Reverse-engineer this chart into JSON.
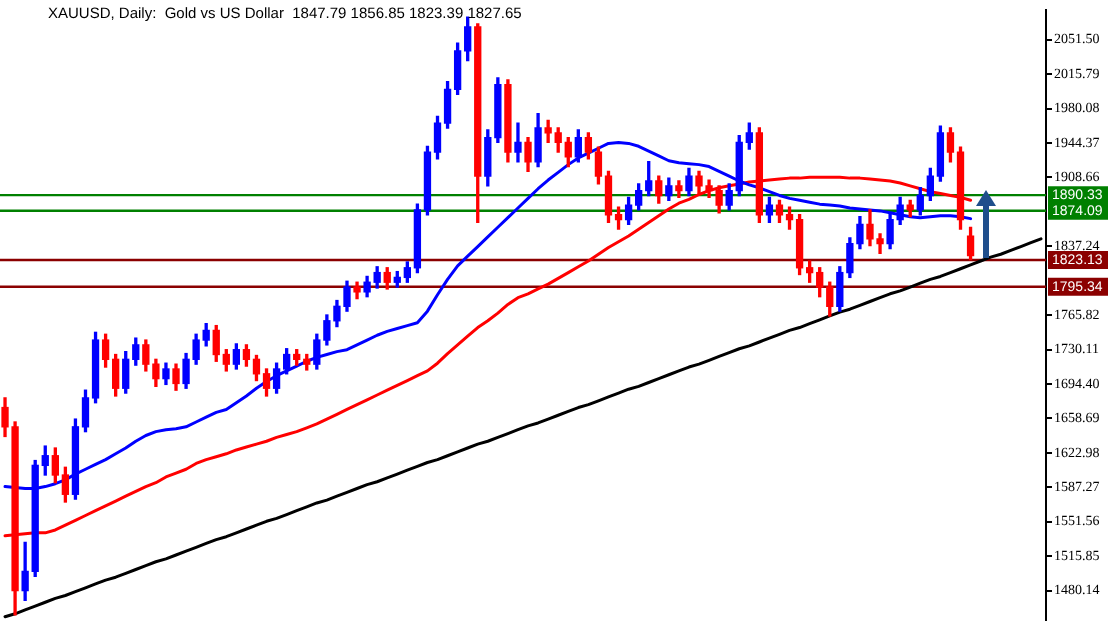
{
  "chart_data": {
    "type": "candlestick",
    "title": "XAUUSD, Daily:  Gold vs US Dollar  1847.79 1856.85 1823.39 1827.65",
    "categories": [
      null,
      null,
      null,
      null,
      null,
      null,
      null,
      null,
      null,
      null,
      null,
      null,
      null,
      null,
      null,
      null,
      null,
      null,
      null,
      null,
      null,
      null,
      null,
      null,
      null,
      null,
      null,
      null,
      null,
      null,
      null,
      null,
      null,
      null,
      null,
      null,
      null,
      null,
      null,
      null,
      null,
      null,
      null,
      null,
      null,
      null,
      null,
      null,
      null,
      null,
      null,
      null,
      null,
      null,
      null,
      null,
      null,
      null,
      null,
      null,
      null,
      null,
      null,
      null,
      null,
      null,
      null,
      null,
      null,
      null,
      null,
      null,
      null,
      null,
      null,
      null,
      null,
      null,
      null,
      null,
      null,
      null,
      null,
      null,
      null,
      null,
      null,
      null,
      null,
      null,
      null,
      null,
      null,
      null,
      null,
      null,
      null,
      null,
      null,
      null,
      null,
      null,
      null,
      null
    ],
    "series": [
      {
        "type": "line",
        "color": "#0000ff",
        "values": [
          1588,
          1587,
          1586,
          1586,
          1588,
          1591,
          1595,
          1601,
          1606,
          1611,
          1616,
          1622,
          1628,
          1635,
          1641,
          1645,
          1647,
          1648,
          1650,
          1655,
          1660,
          1665,
          1668,
          1675,
          1682,
          1690,
          1697,
          1703,
          1708,
          1713,
          1718,
          1722,
          1725,
          1728,
          1730,
          1735,
          1740,
          1745,
          1749,
          1752,
          1755,
          1758,
          1770,
          1787,
          1803,
          1817,
          1827,
          1837,
          1847,
          1857,
          1867,
          1877,
          1887,
          1897,
          1906,
          1914,
          1922,
          1929,
          1934,
          1939,
          1944,
          1945,
          1944,
          1941,
          1936,
          1931,
          1926,
          1924,
          1923,
          1922,
          1920,
          1915,
          1910,
          1905,
          1901,
          1898,
          1894,
          1890,
          1887,
          1885,
          1883,
          1881,
          1880,
          1879,
          1877,
          1876,
          1875,
          1874,
          1872,
          1870,
          1868,
          1867,
          1868,
          1869,
          1869,
          1868,
          1866,
          null,
          null,
          null,
          null,
          null,
          null,
          null
        ]
      },
      {
        "type": "line",
        "color": "#ff0000",
        "values": [
          1537,
          1538,
          1539,
          1540,
          1540,
          1543,
          1548,
          1553,
          1558,
          1563,
          1568,
          1573,
          1578,
          1583,
          1588,
          1592,
          1598,
          1602,
          1606,
          1612,
          1616,
          1619,
          1622,
          1626,
          1629,
          1632,
          1635,
          1639,
          1642,
          1645,
          1649,
          1653,
          1658,
          1663,
          1668,
          1673,
          1678,
          1683,
          1688,
          1693,
          1698,
          1703,
          1708,
          1716,
          1726,
          1735,
          1744,
          1753,
          1760,
          1768,
          1777,
          1784,
          1788,
          1793,
          1798,
          1804,
          1810,
          1816,
          1822,
          1829,
          1836,
          1842,
          1848,
          1855,
          1862,
          1869,
          1876,
          1882,
          1886,
          1891,
          1895,
          1898,
          1900,
          1902,
          1904,
          1905,
          1906,
          1907,
          1908,
          1908,
          1909,
          1909,
          1909,
          1909,
          1908,
          1908,
          1907,
          1906,
          1905,
          1903,
          1900,
          1897,
          1894,
          1892,
          1890,
          1888,
          1885,
          null,
          null,
          null,
          null,
          null,
          null,
          null
        ]
      },
      {
        "type": "line",
        "color": "#000000",
        "values": [
          1453,
          1456,
          1460,
          1464,
          1468,
          1472,
          1475,
          1479,
          1483,
          1487,
          1491,
          1494,
          1498,
          1502,
          1506,
          1510,
          1513,
          1517,
          1521,
          1525,
          1529,
          1533,
          1536,
          1540,
          1544,
          1548,
          1552,
          1555,
          1559,
          1563,
          1567,
          1571,
          1574,
          1578,
          1582,
          1586,
          1590,
          1593,
          1597,
          1601,
          1605,
          1609,
          1613,
          1616,
          1620,
          1624,
          1628,
          1632,
          1635,
          1639,
          1643,
          1647,
          1651,
          1654,
          1658,
          1662,
          1666,
          1670,
          1673,
          1677,
          1681,
          1685,
          1689,
          1692,
          1696,
          1700,
          1704,
          1708,
          1712,
          1715,
          1719,
          1723,
          1727,
          1731,
          1734,
          1738,
          1742,
          1746,
          1750,
          1753,
          1757,
          1761,
          1765,
          1769,
          1772,
          1776,
          1780,
          1784,
          1788,
          1791,
          1795,
          1799,
          1803,
          1806,
          1810,
          1814,
          1818,
          1822,
          1826,
          1829,
          1833,
          1837,
          1841,
          1845
        ]
      },
      {
        "ohlc": [
          [
            1670,
            1680,
            1640,
            1650
          ],
          [
            1650,
            1655,
            1455,
            1480
          ],
          [
            1480,
            1530,
            1470,
            1500
          ],
          [
            1500,
            1615,
            1495,
            1610
          ],
          [
            1610,
            1630,
            1600,
            1620
          ],
          [
            1620,
            1628,
            1592,
            1600
          ],
          [
            1600,
            1608,
            1572,
            1580
          ],
          [
            1580,
            1658,
            1575,
            1650
          ],
          [
            1650,
            1688,
            1645,
            1680
          ],
          [
            1680,
            1748,
            1675,
            1740
          ],
          [
            1740,
            1746,
            1712,
            1720
          ],
          [
            1720,
            1725,
            1682,
            1690
          ],
          [
            1690,
            1728,
            1685,
            1720
          ],
          [
            1720,
            1742,
            1714,
            1735
          ],
          [
            1735,
            1740,
            1708,
            1715
          ],
          [
            1715,
            1720,
            1692,
            1700
          ],
          [
            1700,
            1716,
            1694,
            1710
          ],
          [
            1710,
            1715,
            1688,
            1695
          ],
          [
            1695,
            1726,
            1690,
            1720
          ],
          [
            1720,
            1746,
            1715,
            1740
          ],
          [
            1740,
            1757,
            1734,
            1750
          ],
          [
            1750,
            1755,
            1718,
            1725
          ],
          [
            1725,
            1730,
            1708,
            1715
          ],
          [
            1715,
            1736,
            1710,
            1730
          ],
          [
            1730,
            1735,
            1713,
            1720
          ],
          [
            1720,
            1724,
            1698,
            1705
          ],
          [
            1705,
            1710,
            1682,
            1690
          ],
          [
            1690,
            1716,
            1685,
            1710
          ],
          [
            1710,
            1731,
            1705,
            1725
          ],
          [
            1725,
            1730,
            1714,
            1720
          ],
          [
            1720,
            1725,
            1709,
            1715
          ],
          [
            1715,
            1746,
            1710,
            1740
          ],
          [
            1740,
            1766,
            1735,
            1760
          ],
          [
            1760,
            1781,
            1754,
            1775
          ],
          [
            1775,
            1801,
            1770,
            1795
          ],
          [
            1795,
            1800,
            1783,
            1790
          ],
          [
            1790,
            1806,
            1785,
            1800
          ],
          [
            1800,
            1816,
            1794,
            1810
          ],
          [
            1810,
            1815,
            1793,
            1800
          ],
          [
            1800,
            1811,
            1795,
            1805
          ],
          [
            1805,
            1821,
            1800,
            1815
          ],
          [
            1815,
            1881,
            1810,
            1875
          ],
          [
            1875,
            1941,
            1870,
            1935
          ],
          [
            1935,
            1972,
            1928,
            1965
          ],
          [
            1965,
            2008,
            1960,
            2000
          ],
          [
            2000,
            2048,
            1995,
            2040
          ],
          [
            2040,
            2075,
            2030,
            2065
          ],
          [
            2065,
            2068,
            1862,
            1910
          ],
          [
            1910,
            1958,
            1900,
            1950
          ],
          [
            1950,
            2012,
            1945,
            2005
          ],
          [
            2005,
            2010,
            1925,
            1935
          ],
          [
            1935,
            1965,
            1925,
            1945
          ],
          [
            1945,
            1950,
            1915,
            1925
          ],
          [
            1925,
            1975,
            1920,
            1960
          ],
          [
            1960,
            1968,
            1945,
            1955
          ],
          [
            1955,
            1960,
            1935,
            1945
          ],
          [
            1945,
            1950,
            1920,
            1930
          ],
          [
            1930,
            1958,
            1925,
            1950
          ],
          [
            1950,
            1955,
            1928,
            1935
          ],
          [
            1935,
            1940,
            1902,
            1910
          ],
          [
            1910,
            1915,
            1862,
            1870
          ],
          [
            1870,
            1878,
            1855,
            1865
          ],
          [
            1865,
            1888,
            1860,
            1880
          ],
          [
            1880,
            1902,
            1875,
            1895
          ],
          [
            1895,
            1925,
            1890,
            1905
          ],
          [
            1905,
            1910,
            1882,
            1890
          ],
          [
            1890,
            1908,
            1885,
            1900
          ],
          [
            1900,
            1905,
            1888,
            1895
          ],
          [
            1895,
            1918,
            1890,
            1910
          ],
          [
            1910,
            1915,
            1892,
            1900
          ],
          [
            1900,
            1906,
            1888,
            1895
          ],
          [
            1895,
            1900,
            1872,
            1880
          ],
          [
            1880,
            1902,
            1875,
            1895
          ],
          [
            1895,
            1952,
            1890,
            1945
          ],
          [
            1945,
            1965,
            1938,
            1955
          ],
          [
            1955,
            1960,
            1862,
            1870
          ],
          [
            1870,
            1888,
            1862,
            1880
          ],
          [
            1880,
            1885,
            1862,
            1870
          ],
          [
            1870,
            1878,
            1855,
            1865
          ],
          [
            1865,
            1870,
            1808,
            1815
          ],
          [
            1815,
            1822,
            1800,
            1810
          ],
          [
            1810,
            1815,
            1785,
            1795
          ],
          [
            1795,
            1800,
            1765,
            1775
          ],
          [
            1775,
            1816,
            1770,
            1810
          ],
          [
            1810,
            1846,
            1805,
            1840
          ],
          [
            1840,
            1868,
            1835,
            1860
          ],
          [
            1860,
            1875,
            1838,
            1845
          ],
          [
            1845,
            1850,
            1830,
            1840
          ],
          [
            1840,
            1872,
            1835,
            1865
          ],
          [
            1865,
            1888,
            1860,
            1880
          ],
          [
            1880,
            1885,
            1868,
            1875
          ],
          [
            1875,
            1898,
            1870,
            1890
          ],
          [
            1890,
            1918,
            1885,
            1910
          ],
          [
            1910,
            1962,
            1905,
            1955
          ],
          [
            1955,
            1960,
            1925,
            1935
          ],
          [
            1935,
            1940,
            1855,
            1865
          ],
          [
            1847.79,
            1856.85,
            1823.39,
            1827.65
          ],
          null,
          null,
          null,
          null,
          null,
          null,
          null
        ],
        "colors": [
          "#ff0000",
          "#ff0000",
          "#0000ff",
          "#0000ff",
          "#0000ff",
          "#ff0000",
          "#ff0000",
          "#0000ff",
          "#0000ff",
          "#0000ff",
          "#ff0000",
          "#ff0000",
          "#0000ff",
          "#0000ff",
          "#ff0000",
          "#ff0000",
          "#0000ff",
          "#ff0000",
          "#0000ff",
          "#0000ff",
          "#0000ff",
          "#ff0000",
          "#ff0000",
          "#0000ff",
          "#ff0000",
          "#ff0000",
          "#ff0000",
          "#0000ff",
          "#0000ff",
          "#ff0000",
          "#ff0000",
          "#0000ff",
          "#0000ff",
          "#0000ff",
          "#0000ff",
          "#ff0000",
          "#0000ff",
          "#0000ff",
          "#ff0000",
          "#0000ff",
          "#0000ff",
          "#0000ff",
          "#0000ff",
          "#0000ff",
          "#0000ff",
          "#0000ff",
          "#0000ff",
          "#ff0000",
          "#0000ff",
          "#0000ff",
          "#ff0000",
          "#0000ff",
          "#ff0000",
          "#0000ff",
          "#ff0000",
          "#ff0000",
          "#ff0000",
          "#0000ff",
          "#ff0000",
          "#ff0000",
          "#ff0000",
          "#ff0000",
          "#0000ff",
          "#0000ff",
          "#0000ff",
          "#ff0000",
          "#0000ff",
          "#ff0000",
          "#0000ff",
          "#ff0000",
          "#ff0000",
          "#ff0000",
          "#0000ff",
          "#0000ff",
          "#0000ff",
          "#ff0000",
          "#0000ff",
          "#ff0000",
          "#ff0000",
          "#ff0000",
          "#ff0000",
          "#ff0000",
          "#ff0000",
          "#0000ff",
          "#0000ff",
          "#0000ff",
          "#ff0000",
          "#ff0000",
          "#0000ff",
          "#0000ff",
          "#ff0000",
          "#0000ff",
          "#0000ff",
          "#0000ff",
          "#ff0000",
          "#ff0000",
          "#ff0000",
          null,
          null,
          null,
          null,
          null,
          null,
          null
        ]
      }
    ],
    "ylim": [
      1450,
      2082
    ],
    "yticks": [
      {
        "value": 2051.5,
        "label": "2051.50"
      },
      2015.79,
      1980.08,
      1944.37,
      1908.66,
      1837.24,
      1765.82,
      1730.11,
      {
        "value": 1694.4,
        "label": "1694.40"
      },
      {
        "value": 1658.69,
        "label": "1658.69"
      },
      1622.98,
      1587.27,
      1551.56,
      1515.85,
      1480.14
    ],
    "ref_lines": [
      {
        "axis": "y",
        "value": 1890.33,
        "label": "1890.33",
        "color": "#008000"
      },
      {
        "axis": "y",
        "value": 1874.09,
        "label": "1874.09",
        "color": "#008000"
      },
      {
        "axis": "y",
        "value": 1823.13,
        "label": "1823.13",
        "color": "#8b0000"
      },
      {
        "axis": "y",
        "value": 1795.34,
        "label": "1795.34",
        "color": "#8b0000"
      }
    ],
    "tick_labels": "y",
    "marker": "none",
    "legend": false,
    "grid": false
  }
}
